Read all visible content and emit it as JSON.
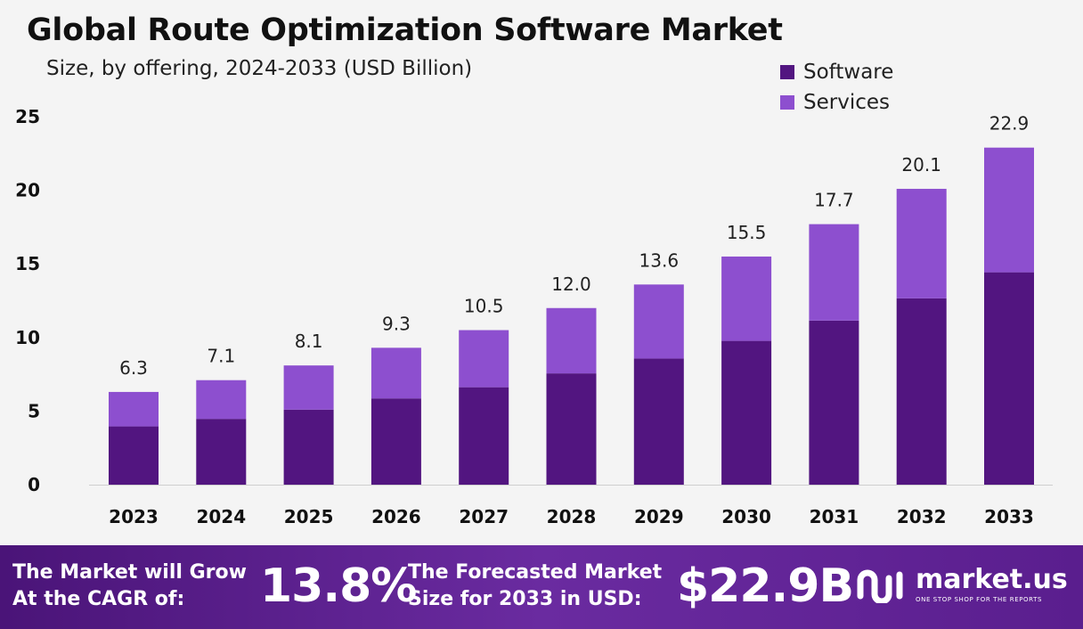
{
  "colors": {
    "software": "#521580",
    "services": "#8d4fcf",
    "banner": "#5a1e8e",
    "axis": "#111111"
  },
  "chart_data": {
    "type": "bar",
    "stacked": true,
    "title": "Global Route Optimization Software Market",
    "subtitle": "Size, by offering, 2024-2033 (USD Billion)",
    "categories": [
      "2023",
      "2024",
      "2025",
      "2026",
      "2027",
      "2028",
      "2029",
      "2030",
      "2031",
      "2032",
      "2033"
    ],
    "series": [
      {
        "name": "Software",
        "values": [
          3.96,
          4.47,
          5.1,
          5.86,
          6.62,
          7.56,
          8.57,
          9.77,
          11.15,
          12.66,
          14.43
        ]
      },
      {
        "name": "Services",
        "values": [
          2.34,
          2.63,
          3.0,
          3.44,
          3.88,
          4.44,
          5.03,
          5.73,
          6.55,
          7.44,
          8.47
        ]
      }
    ],
    "totals": [
      "6.3",
      "7.1",
      "8.1",
      "9.3",
      "10.5",
      "12.0",
      "13.6",
      "15.5",
      "17.7",
      "20.1",
      "22.9"
    ],
    "yticks": [
      "0",
      "5",
      "10",
      "15",
      "20",
      "25"
    ],
    "ylim": [
      0,
      25
    ],
    "grid": false,
    "legend_position": "top-right"
  },
  "banner": {
    "cagr_line1": "The Market will Grow",
    "cagr_line2": "At the CAGR of:",
    "cagr_value": "13.8%",
    "forecast_line1": "The Forecasted Market",
    "forecast_line2": "Size for 2033 in USD:",
    "forecast_value": "$22.9B",
    "logo_name": "market.us",
    "logo_tagline": "ONE STOP SHOP FOR THE REPORTS"
  }
}
